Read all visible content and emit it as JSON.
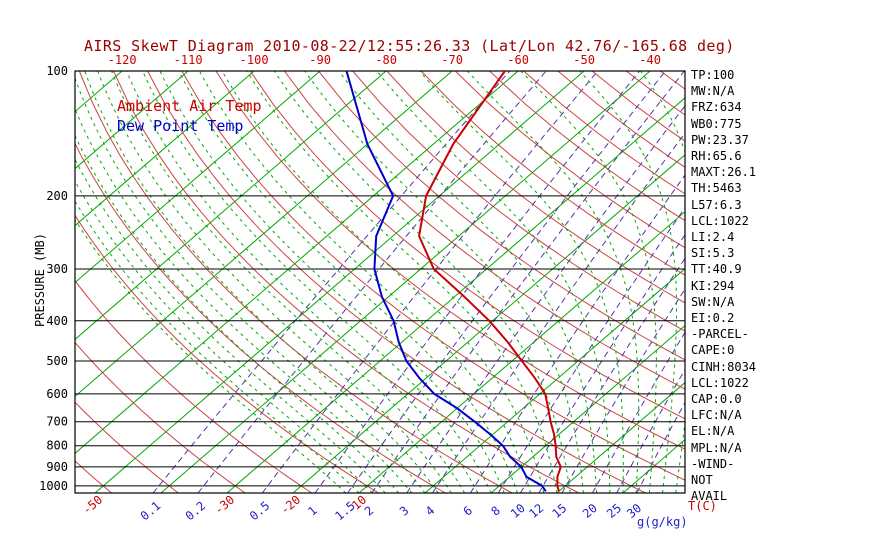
{
  "title": "AIRS SkewT Diagram 2010-08-22/12:55:26.33 (Lat/Lon 42.76/-165.68 deg)",
  "legend": {
    "air_temp": "Ambient Air Temp",
    "dew_point": "Dew Point Temp"
  },
  "axes": {
    "pressure_axis_title": "PRESSURE (MB)",
    "temp_unit_label": "T(C)",
    "mixing_ratio_unit_label": "g(g/kg)",
    "pressure_ticks": [
      100,
      200,
      300,
      400,
      500,
      600,
      700,
      800,
      900,
      1000
    ],
    "top_temp_labels": [
      -120,
      -110,
      -100,
      -90,
      -80,
      -70,
      -60,
      -50,
      -40
    ],
    "bottom_temp_labels": [
      -50,
      -30,
      -20,
      -10
    ],
    "mixing_ratio_labels": [
      0.1,
      0.2,
      0.5,
      1,
      1.5,
      2,
      3,
      4,
      6,
      8,
      10,
      12,
      15,
      20,
      25,
      30
    ]
  },
  "stats": [
    "TP:100",
    "MW:N/A",
    "FRZ:634",
    "WB0:775",
    "PW:23.37",
    "RH:65.6",
    "MAXT:26.1",
    "TH:5463",
    "L57:6.3",
    "LCL:1022",
    "LI:2.4",
    "SI:5.3",
    "TT:40.9",
    "KI:294",
    "SW:N/A",
    "EI:0.2",
    "-PARCEL-",
    "CAPE:0",
    "CINH:8034",
    "LCL:1022",
    "CAP:0.0",
    "LFC:N/A",
    "EL:N/A",
    "MPL:N/A",
    "-WIND-",
    "NOT",
    "AVAIL"
  ],
  "colors": {
    "title": "#990000",
    "isotherm": "#00a800",
    "dry_adiabat": "#cc4444",
    "mixing_ratio": "#5533aa",
    "moist_adiabat": "#00a800",
    "air_temp": "#cc0000",
    "dew_point": "#0000cc",
    "grid": "#000000",
    "axis_label_red": "#cc0000",
    "axis_label_blue": "#2222cc",
    "pressure_label": "#000000"
  },
  "chart_data": {
    "type": "line",
    "plot_style": "skew-t log-p",
    "title": "AIRS SkewT Diagram 2010-08-22/12:55:26.33 (Lat/Lon 42.76/-165.68 deg)",
    "xlabel": "T(C)",
    "ylabel": "PRESSURE (MB)",
    "pressure_scale": "log",
    "pressure_range_mb": [
      100,
      1040
    ],
    "grid": true,
    "legend_position": "upper-left-inside",
    "isotherms_c": {
      "min": -120,
      "max": 40,
      "step": 10
    },
    "dry_adiabats_c": {
      "min": -50,
      "max": 200,
      "step": 10
    },
    "moist_adiabats_c": {
      "min": -12,
      "max": 38,
      "step": 2
    },
    "mixing_ratio_lines_g_kg": [
      0.1,
      0.2,
      0.5,
      1,
      1.5,
      2,
      3,
      4,
      6,
      8,
      10,
      12,
      15,
      20,
      25,
      30
    ],
    "series": [
      {
        "name": "Ambient Air Temp",
        "color": "#cc0000",
        "points_p_t": [
          [
            1030,
            20
          ],
          [
            1000,
            18.8
          ],
          [
            950,
            17.2
          ],
          [
            900,
            16
          ],
          [
            850,
            13.5
          ],
          [
            800,
            11.5
          ],
          [
            750,
            9.2
          ],
          [
            700,
            6.5
          ],
          [
            650,
            3.8
          ],
          [
            600,
            0.8
          ],
          [
            550,
            -3.5
          ],
          [
            500,
            -8.5
          ],
          [
            450,
            -14
          ],
          [
            400,
            -20.5
          ],
          [
            350,
            -28.5
          ],
          [
            300,
            -38
          ],
          [
            250,
            -46
          ],
          [
            200,
            -52
          ],
          [
            150,
            -57
          ],
          [
            100,
            -62
          ]
        ]
      },
      {
        "name": "Dew Point Temp",
        "color": "#0000cc",
        "points_p_t": [
          [
            1030,
            18
          ],
          [
            1000,
            16.5
          ],
          [
            950,
            12.5
          ],
          [
            900,
            10
          ],
          [
            850,
            6.5
          ],
          [
            800,
            3.5
          ],
          [
            750,
            -0.5
          ],
          [
            700,
            -5
          ],
          [
            650,
            -10
          ],
          [
            600,
            -16
          ],
          [
            550,
            -21
          ],
          [
            500,
            -26
          ],
          [
            450,
            -30.5
          ],
          [
            400,
            -35
          ],
          [
            350,
            -41
          ],
          [
            300,
            -47
          ],
          [
            250,
            -52.5
          ],
          [
            200,
            -57
          ],
          [
            150,
            -70
          ],
          [
            100,
            -86
          ]
        ]
      }
    ]
  }
}
